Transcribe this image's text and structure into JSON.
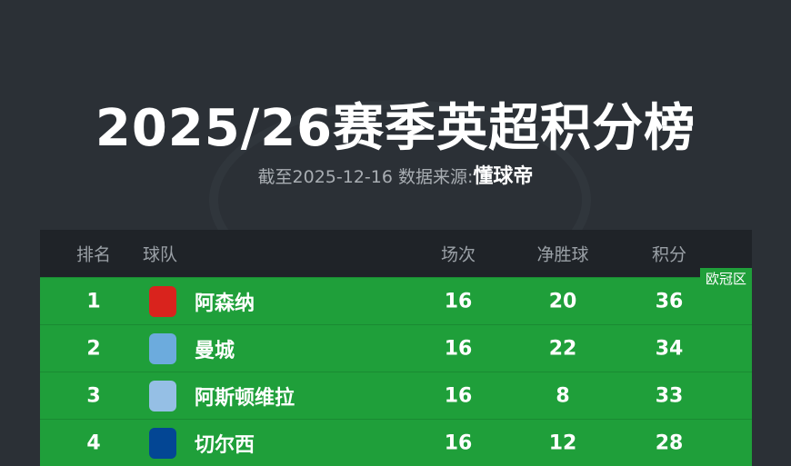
{
  "title": "2025/26赛季英超积分榜",
  "subtitle": {
    "prefix": "截至2025-12-16 数据来源:",
    "source": "懂球帝"
  },
  "headers": {
    "rank": "排名",
    "team": "球队",
    "played": "场次",
    "gd": "净胜球",
    "points": "积分"
  },
  "zone_label": "欧冠区",
  "colors": {
    "background": "#2b3036",
    "header": "#1f2328",
    "ucl_zone": "#1f9f3a"
  },
  "rows": [
    {
      "rank": "1",
      "team": "阿森纳",
      "played": "16",
      "gd": "20",
      "points": "36",
      "logo_color": "#d9231d"
    },
    {
      "rank": "2",
      "team": "曼城",
      "played": "16",
      "gd": "22",
      "points": "34",
      "logo_color": "#6cabdd"
    },
    {
      "rank": "3",
      "team": "阿斯顿维拉",
      "played": "16",
      "gd": "8",
      "points": "33",
      "logo_color": "#95bfe5"
    },
    {
      "rank": "4",
      "team": "切尔西",
      "played": "16",
      "gd": "12",
      "points": "28",
      "logo_color": "#034694"
    }
  ]
}
